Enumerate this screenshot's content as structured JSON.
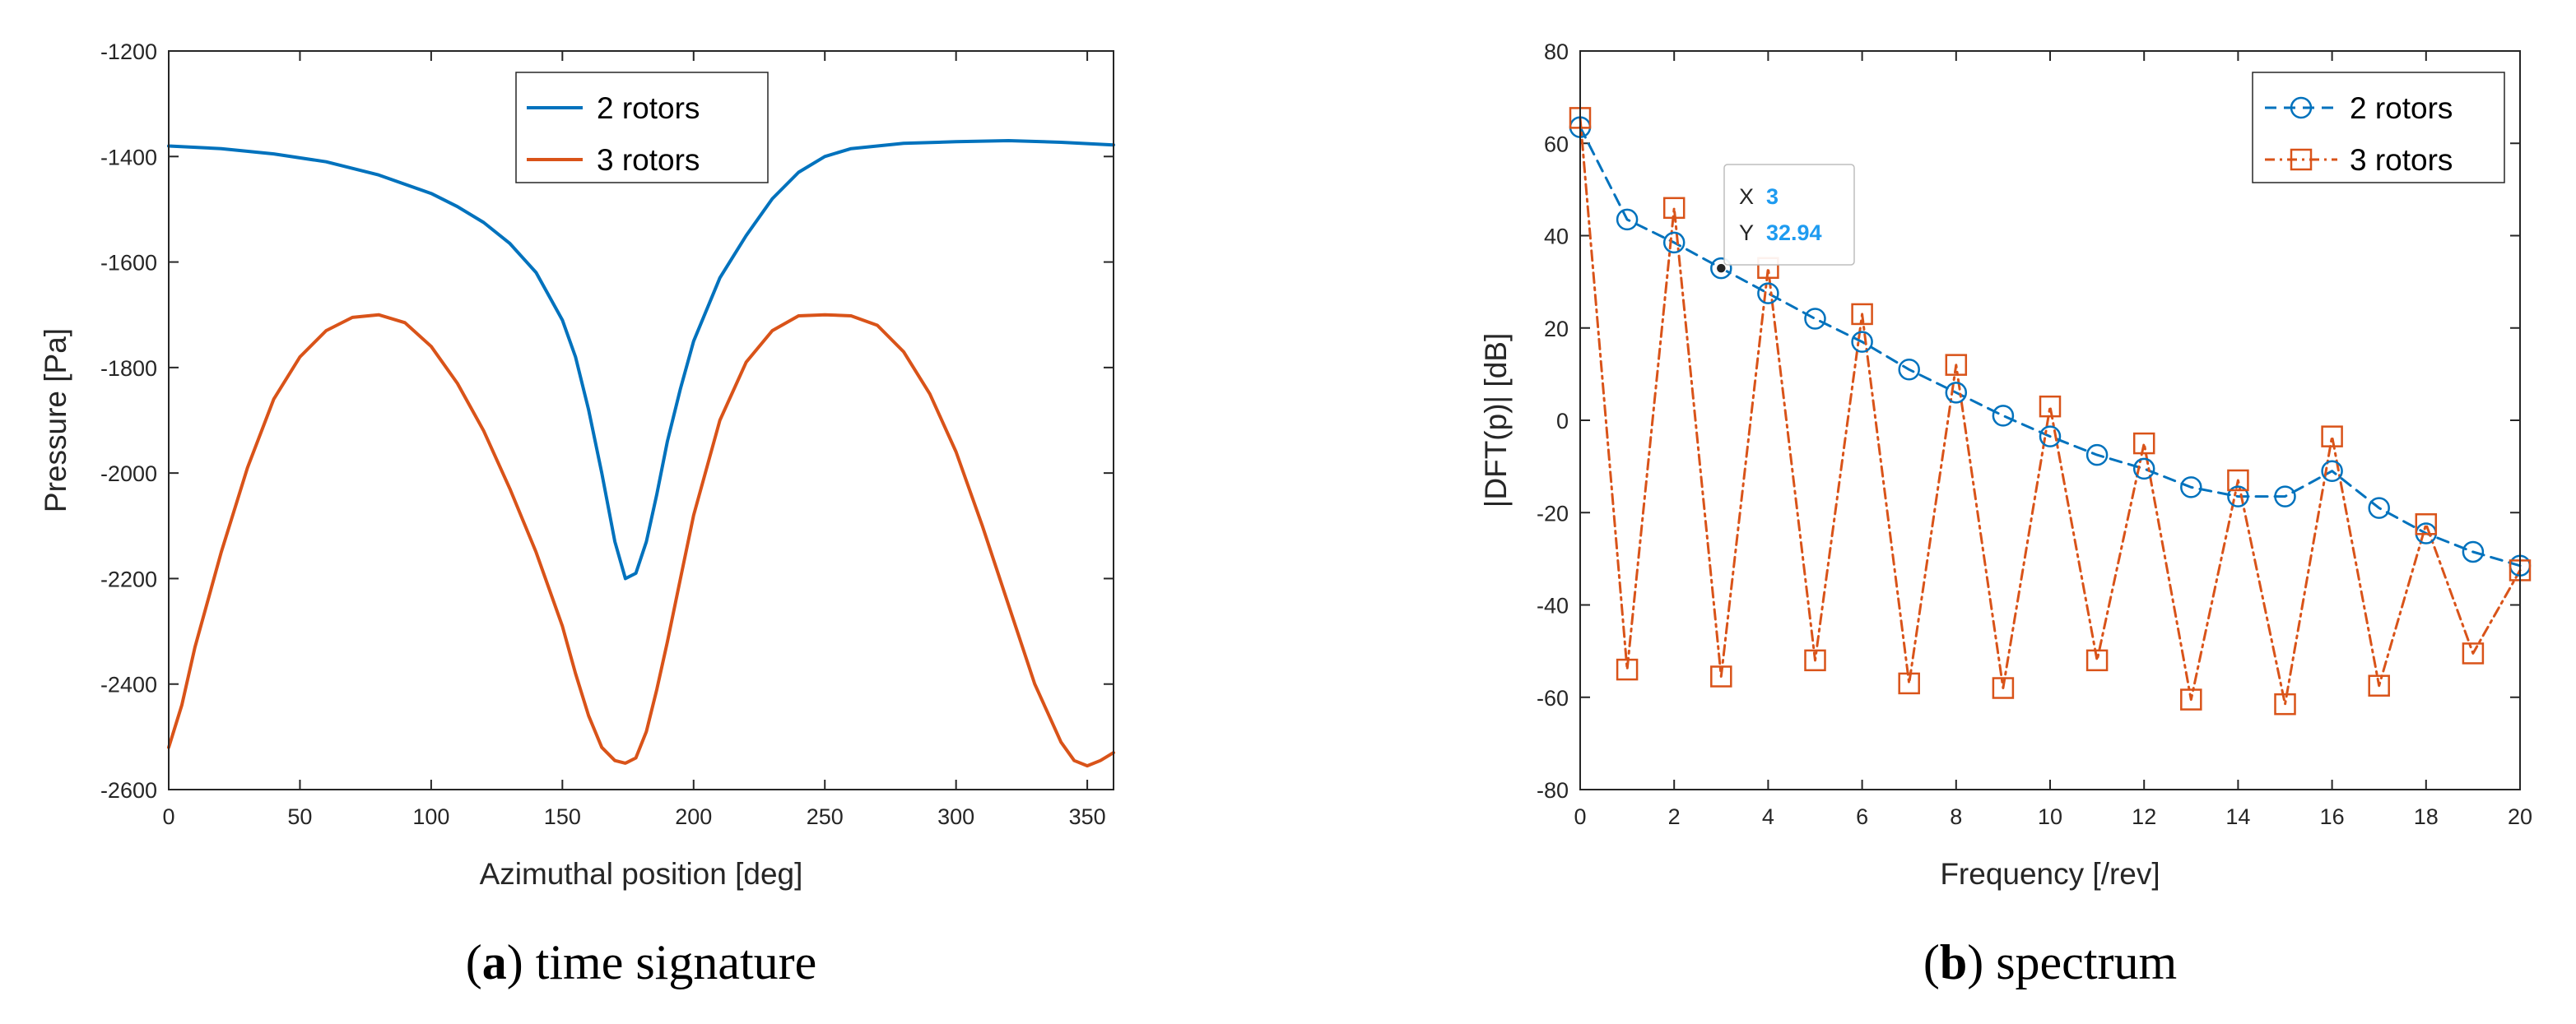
{
  "colors": {
    "series1": "#0072BD",
    "series2": "#D95319",
    "axis": "#262626",
    "datatip_value": "#1E9BF0"
  },
  "chart_data": [
    {
      "type": "line",
      "caption_letter": "a",
      "caption_text": "time signature",
      "xlabel": "Azimuthal position [deg]",
      "ylabel": "Pressure [Pa]",
      "xlim": [
        0,
        360
      ],
      "ylim": [
        -2600,
        -1200
      ],
      "xticks": [
        0,
        50,
        100,
        150,
        200,
        250,
        300,
        350
      ],
      "yticks": [
        -2600,
        -2400,
        -2200,
        -2000,
        -1800,
        -1600,
        -1400,
        -1200
      ],
      "legend_position": "top-center",
      "series": [
        {
          "name": "2 rotors",
          "color": "#0072BD",
          "x": [
            0,
            20,
            40,
            60,
            80,
            100,
            110,
            120,
            130,
            140,
            150,
            155,
            160,
            165,
            170,
            174,
            178,
            182,
            186,
            190,
            195,
            200,
            210,
            220,
            230,
            240,
            250,
            260,
            280,
            300,
            320,
            340,
            360
          ],
          "values": [
            -1380,
            -1385,
            -1395,
            -1410,
            -1435,
            -1470,
            -1495,
            -1525,
            -1565,
            -1620,
            -1710,
            -1780,
            -1880,
            -2000,
            -2130,
            -2200,
            -2190,
            -2130,
            -2040,
            -1940,
            -1840,
            -1750,
            -1630,
            -1550,
            -1480,
            -1430,
            -1400,
            -1385,
            -1375,
            -1372,
            -1370,
            -1373,
            -1378
          ]
        },
        {
          "name": "3 rotors",
          "color": "#D95319",
          "x": [
            0,
            5,
            10,
            20,
            30,
            40,
            50,
            60,
            70,
            80,
            90,
            100,
            110,
            120,
            130,
            140,
            150,
            155,
            160,
            165,
            170,
            174,
            178,
            182,
            186,
            190,
            195,
            200,
            210,
            220,
            230,
            240,
            250,
            260,
            270,
            280,
            290,
            300,
            310,
            320,
            330,
            340,
            345,
            350,
            355,
            360
          ],
          "values": [
            -2520,
            -2440,
            -2330,
            -2150,
            -1990,
            -1860,
            -1780,
            -1730,
            -1705,
            -1700,
            -1715,
            -1760,
            -1830,
            -1920,
            -2030,
            -2150,
            -2290,
            -2380,
            -2460,
            -2520,
            -2545,
            -2550,
            -2540,
            -2490,
            -2410,
            -2320,
            -2200,
            -2080,
            -1900,
            -1790,
            -1730,
            -1702,
            -1700,
            -1702,
            -1720,
            -1770,
            -1850,
            -1960,
            -2100,
            -2250,
            -2400,
            -2510,
            -2545,
            -2555,
            -2545,
            -2530
          ]
        }
      ]
    },
    {
      "type": "line",
      "caption_letter": "b",
      "caption_text": "spectrum",
      "xlabel": "Frequency [/rev]",
      "ylabel": "|DFT(p)| [dB]",
      "xlim": [
        0,
        20
      ],
      "ylim": [
        -80,
        80
      ],
      "xticks": [
        0,
        2,
        4,
        6,
        8,
        10,
        12,
        14,
        16,
        18,
        20
      ],
      "yticks": [
        -80,
        -60,
        -40,
        -20,
        0,
        20,
        40,
        60,
        80
      ],
      "legend_position": "top-right",
      "series": [
        {
          "name": "2 rotors",
          "color": "#0072BD",
          "marker": "circle",
          "line_style": "dashed",
          "x": [
            0,
            1,
            2,
            3,
            4,
            5,
            6,
            7,
            8,
            9,
            10,
            11,
            12,
            13,
            14,
            15,
            16,
            17,
            18,
            19,
            20
          ],
          "values": [
            63.5,
            43.5,
            38.5,
            32.94,
            27.5,
            22,
            17,
            11,
            6,
            1,
            -3.5,
            -7.5,
            -10.5,
            -14.5,
            -16.5,
            -16.5,
            -11,
            -19,
            -24.5,
            -28.5,
            -31.5
          ]
        },
        {
          "name": "3 rotors",
          "color": "#D95319",
          "marker": "square",
          "line_style": "dash-dot",
          "x": [
            0,
            1,
            2,
            3,
            4,
            5,
            6,
            7,
            8,
            9,
            10,
            11,
            12,
            13,
            14,
            15,
            16,
            17,
            18,
            19,
            20
          ],
          "values": [
            65.5,
            -54,
            46,
            -55.5,
            33,
            -52,
            23,
            -57,
            12,
            -58,
            3,
            -52,
            -5,
            -60.5,
            -13,
            -61.5,
            -3.5,
            -57.5,
            -22.5,
            -50.5,
            -32.5
          ]
        }
      ],
      "datatip": {
        "x_label": "X",
        "x_value": "3",
        "y_label": "Y",
        "y_value": "32.94",
        "point_x": 3,
        "point_y": 32.94
      }
    }
  ]
}
